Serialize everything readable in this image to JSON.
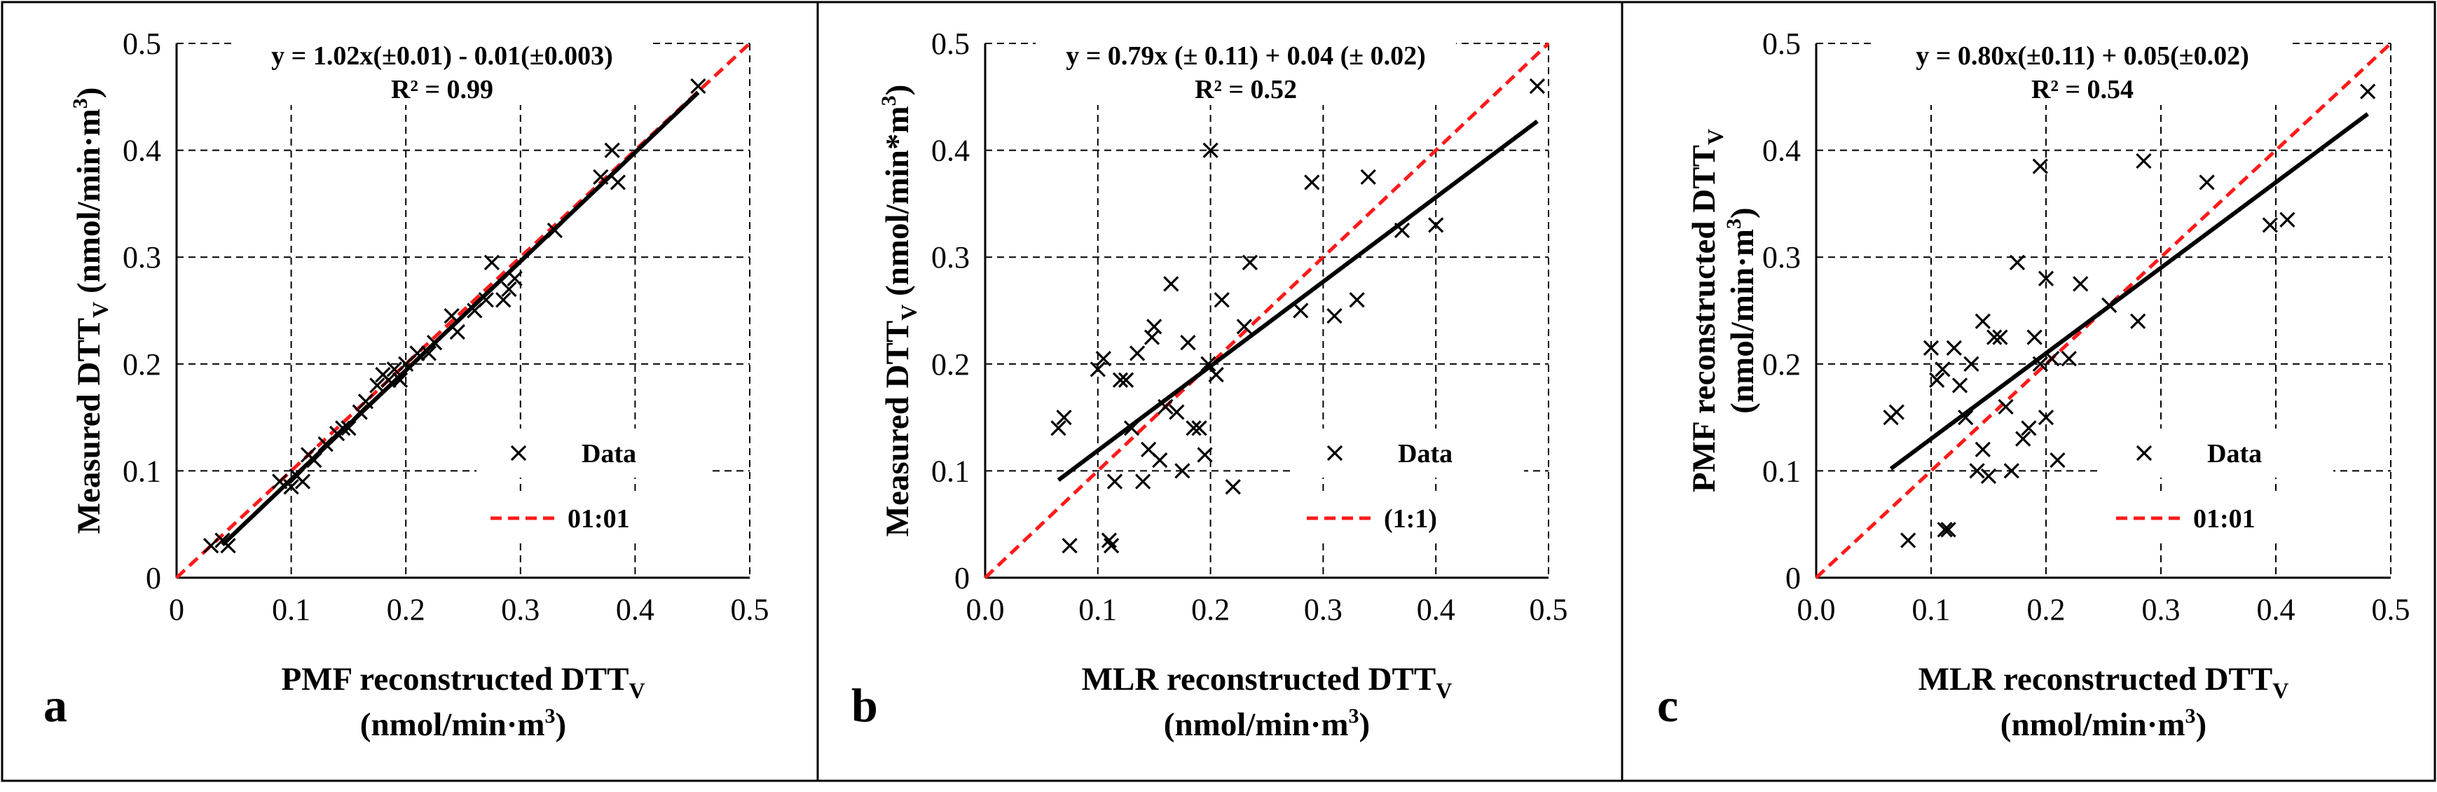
{
  "chart_data": [
    {
      "type": "scatter",
      "panel_label": "a",
      "equation": "y = 1.02x(±0.01) - 0.01(±0.003)",
      "r2": "R² = 0.99",
      "xlabel_main": "PMF reconstructed DTT",
      "xlabel_sub": "V",
      "xlabel_units": "(nmol/min·m",
      "xlabel_units_sup": "3",
      "xlabel_units_end": ")",
      "ylabel_main": "Measured  DTT",
      "ylabel_sub": "V",
      "ylabel_units": " (nmol/min·m",
      "ylabel_units_sup": "3",
      "ylabel_units_end": ")",
      "xlim": [
        0,
        0.5
      ],
      "ylim": [
        0,
        0.5
      ],
      "xticks": [
        "0",
        "0.1",
        "0.2",
        "0.3",
        "0.4",
        "0.5"
      ],
      "yticks": [
        "0",
        "0.1",
        "0.2",
        "0.3",
        "0.4",
        "0.5"
      ],
      "legend": {
        "data": "Data",
        "line": "01:01"
      },
      "fit": {
        "slope": 1.02,
        "intercept": -0.01,
        "x_range": [
          0.04,
          0.455
        ]
      },
      "points": [
        [
          0.03,
          0.03
        ],
        [
          0.04,
          0.035
        ],
        [
          0.045,
          0.03
        ],
        [
          0.09,
          0.09
        ],
        [
          0.1,
          0.085
        ],
        [
          0.105,
          0.095
        ],
        [
          0.11,
          0.09
        ],
        [
          0.115,
          0.115
        ],
        [
          0.12,
          0.11
        ],
        [
          0.13,
          0.125
        ],
        [
          0.14,
          0.135
        ],
        [
          0.145,
          0.14
        ],
        [
          0.15,
          0.14
        ],
        [
          0.16,
          0.155
        ],
        [
          0.165,
          0.165
        ],
        [
          0.175,
          0.18
        ],
        [
          0.18,
          0.19
        ],
        [
          0.185,
          0.185
        ],
        [
          0.19,
          0.195
        ],
        [
          0.195,
          0.185
        ],
        [
          0.2,
          0.2
        ],
        [
          0.21,
          0.21
        ],
        [
          0.22,
          0.21
        ],
        [
          0.225,
          0.22
        ],
        [
          0.24,
          0.245
        ],
        [
          0.245,
          0.23
        ],
        [
          0.26,
          0.25
        ],
        [
          0.27,
          0.26
        ],
        [
          0.275,
          0.295
        ],
        [
          0.285,
          0.26
        ],
        [
          0.29,
          0.27
        ],
        [
          0.295,
          0.28
        ],
        [
          0.33,
          0.325
        ],
        [
          0.37,
          0.375
        ],
        [
          0.38,
          0.4
        ],
        [
          0.385,
          0.37
        ],
        [
          0.455,
          0.46
        ]
      ]
    },
    {
      "type": "scatter",
      "panel_label": "b",
      "equation": "y = 0.79x (± 0.11) + 0.04 (± 0.02)",
      "r2": "R² = 0.52",
      "xlabel_main": "MLR reconstructed DTT",
      "xlabel_sub": "V",
      "xlabel_units": "(nmol/min·m",
      "xlabel_units_sup": "3",
      "xlabel_units_end": ")",
      "ylabel_main": "Measured  DTT",
      "ylabel_sub": "V",
      "ylabel_units": " (nmol/min*m",
      "ylabel_units_sup": "3",
      "ylabel_units_end": ")",
      "xlim": [
        0,
        0.5
      ],
      "ylim": [
        0,
        0.5
      ],
      "xticks": [
        "0.0",
        "0.1",
        "0.2",
        "0.3",
        "0.4",
        "0.5"
      ],
      "yticks": [
        "0",
        "0.1",
        "0.2",
        "0.3",
        "0.4",
        "0.5"
      ],
      "legend": {
        "data": "Data",
        "line": "(1:1)"
      },
      "fit": {
        "slope": 0.79,
        "intercept": 0.04,
        "x_range": [
          0.065,
          0.49
        ]
      },
      "points": [
        [
          0.065,
          0.14
        ],
        [
          0.07,
          0.15
        ],
        [
          0.075,
          0.03
        ],
        [
          0.1,
          0.195
        ],
        [
          0.105,
          0.205
        ],
        [
          0.11,
          0.035
        ],
        [
          0.112,
          0.03
        ],
        [
          0.115,
          0.09
        ],
        [
          0.12,
          0.185
        ],
        [
          0.125,
          0.185
        ],
        [
          0.13,
          0.14
        ],
        [
          0.135,
          0.21
        ],
        [
          0.14,
          0.09
        ],
        [
          0.145,
          0.12
        ],
        [
          0.148,
          0.225
        ],
        [
          0.15,
          0.235
        ],
        [
          0.155,
          0.11
        ],
        [
          0.16,
          0.16
        ],
        [
          0.165,
          0.275
        ],
        [
          0.17,
          0.155
        ],
        [
          0.175,
          0.1
        ],
        [
          0.18,
          0.22
        ],
        [
          0.185,
          0.14
        ],
        [
          0.19,
          0.14
        ],
        [
          0.195,
          0.115
        ],
        [
          0.198,
          0.2
        ],
        [
          0.2,
          0.4
        ],
        [
          0.205,
          0.19
        ],
        [
          0.21,
          0.26
        ],
        [
          0.22,
          0.085
        ],
        [
          0.23,
          0.235
        ],
        [
          0.235,
          0.295
        ],
        [
          0.28,
          0.25
        ],
        [
          0.29,
          0.37
        ],
        [
          0.31,
          0.245
        ],
        [
          0.33,
          0.26
        ],
        [
          0.34,
          0.375
        ],
        [
          0.37,
          0.325
        ],
        [
          0.4,
          0.33
        ],
        [
          0.49,
          0.46
        ]
      ]
    },
    {
      "type": "scatter",
      "panel_label": "c",
      "equation": "y = 0.80x(±0.11) + 0.05(±0.02)",
      "r2": "R² = 0.54",
      "xlabel_main": "MLR reconstructed DTT",
      "xlabel_sub": "V",
      "xlabel_units": "(nmol/min·m",
      "xlabel_units_sup": "3",
      "xlabel_units_end": ")",
      "ylabel_main": "PMF reconstructed DTT",
      "ylabel_sub": "V",
      "ylabel_units": "(nmol/min·m",
      "ylabel_units_sup": "3",
      "ylabel_units_end": ")",
      "xlim": [
        0,
        0.5
      ],
      "ylim": [
        0,
        0.5
      ],
      "xticks": [
        "0.0",
        "0.1",
        "0.2",
        "0.3",
        "0.4",
        "0.5"
      ],
      "yticks": [
        "0",
        "0.1",
        "0.2",
        "0.3",
        "0.4",
        "0.5"
      ],
      "legend": {
        "data": "Data",
        "line": "01:01"
      },
      "fit": {
        "slope": 0.8,
        "intercept": 0.05,
        "x_range": [
          0.065,
          0.48
        ]
      },
      "points": [
        [
          0.065,
          0.15
        ],
        [
          0.07,
          0.155
        ],
        [
          0.08,
          0.035
        ],
        [
          0.1,
          0.215
        ],
        [
          0.105,
          0.185
        ],
        [
          0.11,
          0.195
        ],
        [
          0.112,
          0.045
        ],
        [
          0.115,
          0.045
        ],
        [
          0.12,
          0.215
        ],
        [
          0.125,
          0.18
        ],
        [
          0.13,
          0.15
        ],
        [
          0.135,
          0.2
        ],
        [
          0.14,
          0.1
        ],
        [
          0.145,
          0.12
        ],
        [
          0.145,
          0.24
        ],
        [
          0.15,
          0.095
        ],
        [
          0.155,
          0.225
        ],
        [
          0.16,
          0.225
        ],
        [
          0.165,
          0.16
        ],
        [
          0.17,
          0.1
        ],
        [
          0.175,
          0.295
        ],
        [
          0.18,
          0.13
        ],
        [
          0.185,
          0.14
        ],
        [
          0.19,
          0.225
        ],
        [
          0.195,
          0.2
        ],
        [
          0.195,
          0.385
        ],
        [
          0.2,
          0.15
        ],
        [
          0.2,
          0.28
        ],
        [
          0.205,
          0.205
        ],
        [
          0.21,
          0.11
        ],
        [
          0.22,
          0.205
        ],
        [
          0.23,
          0.275
        ],
        [
          0.255,
          0.255
        ],
        [
          0.28,
          0.24
        ],
        [
          0.285,
          0.39
        ],
        [
          0.34,
          0.37
        ],
        [
          0.395,
          0.33
        ],
        [
          0.41,
          0.335
        ],
        [
          0.48,
          0.455
        ]
      ]
    }
  ]
}
